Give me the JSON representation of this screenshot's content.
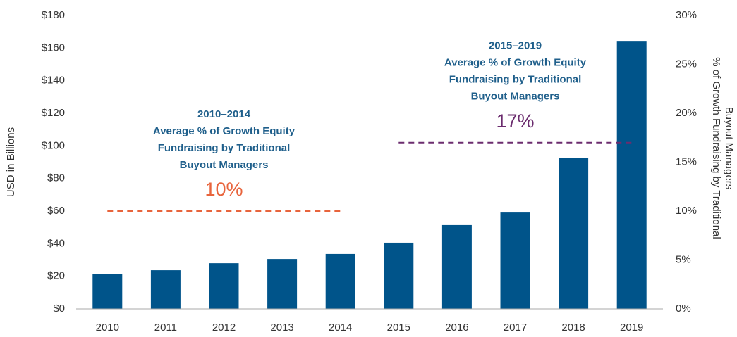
{
  "chart_data": {
    "type": "bar",
    "ylabel": "USD in Billions",
    "y2label": [
      "% of Growth Fundraising by Traditional",
      "Buyout Managers"
    ],
    "categories": [
      "2010",
      "2011",
      "2012",
      "2013",
      "2014",
      "2015",
      "2016",
      "2017",
      "2018",
      "2019"
    ],
    "series": [
      {
        "color": "#00548a",
        "values": [
          21.5,
          23.7,
          28,
          30.6,
          33.7,
          40.6,
          51.4,
          59.1,
          92.4,
          164.4
        ]
      }
    ],
    "ylim": [
      0,
      180
    ],
    "yticks": [
      {
        "value": 0,
        "label": "$0"
      },
      {
        "value": 20,
        "label": "$20"
      },
      {
        "value": 40,
        "label": "$40"
      },
      {
        "value": 60,
        "label": "$60"
      },
      {
        "value": 80,
        "label": "$80"
      },
      {
        "value": 100,
        "label": "$100"
      },
      {
        "value": 120,
        "label": "$120"
      },
      {
        "value": 140,
        "label": "$140"
      },
      {
        "value": 160,
        "label": "$160"
      },
      {
        "value": 180,
        "label": "$180"
      }
    ],
    "y2lim": [
      0,
      30
    ],
    "y2ticks": [
      {
        "value": 0,
        "label": "0%"
      },
      {
        "value": 5,
        "label": "5%"
      },
      {
        "value": 10,
        "label": "10%"
      },
      {
        "value": 15,
        "label": "15%"
      },
      {
        "value": 20,
        "label": "20%"
      },
      {
        "value": 25,
        "label": "25%"
      },
      {
        "value": 30,
        "label": "30%"
      }
    ],
    "reference_lines": [
      {
        "axis": "y2",
        "value": 10,
        "value_label": "10%",
        "span": [
          "2010",
          "2014"
        ],
        "color": "#e8643c",
        "text": [
          "2010–2014",
          "Average % of Growth Equity",
          "Fundraising by Traditional",
          "Buyout Managers"
        ]
      },
      {
        "axis": "y2",
        "value": 17,
        "value_label": "17%",
        "span": [
          "2015",
          "2019"
        ],
        "color": "#6b2c6e",
        "text": [
          "2015–2019",
          "Average % of Growth Equity",
          "Fundraising by Traditional",
          "Buyout Managers"
        ]
      }
    ]
  }
}
